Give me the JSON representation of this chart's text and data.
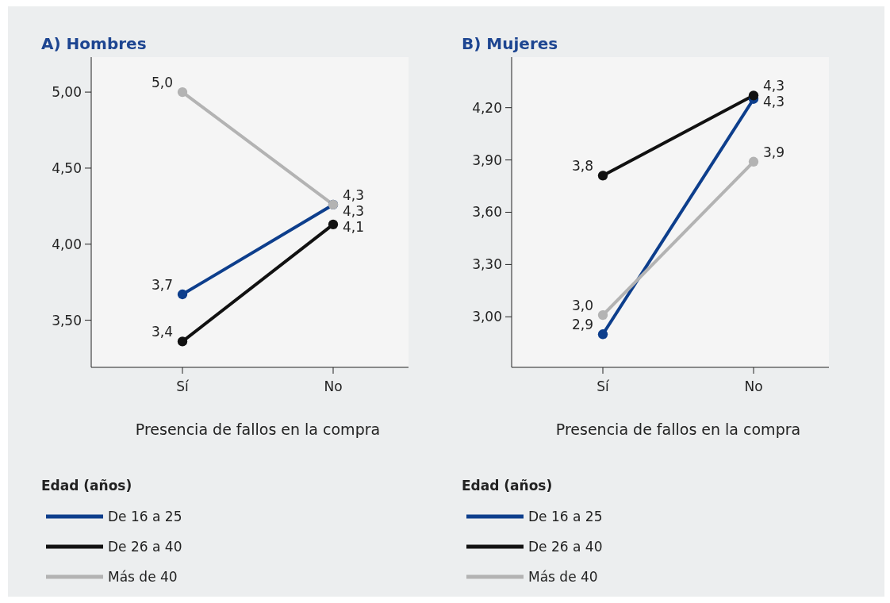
{
  "chart_data": [
    {
      "type": "line",
      "title": "A) Hombres",
      "xlabel": "Presencia de fallos en la compra",
      "legend_title": "Edad (años)",
      "legend": "bottom",
      "marker": "circle",
      "grid": false,
      "categories": [
        "Sí",
        "No"
      ],
      "ylim": [
        3.19,
        5.23
      ],
      "yticks": [
        {
          "value": 3.5,
          "label": "3,50"
        },
        {
          "value": 4.0,
          "label": "4,00"
        },
        {
          "value": 4.5,
          "label": "4,50"
        },
        {
          "value": 5.0,
          "label": "5,00"
        }
      ],
      "series": [
        {
          "name": "De 16 a 25",
          "color": "#0d3e8c",
          "values": [
            3.67,
            4.26
          ],
          "value_labels": [
            "3,7",
            "4,3"
          ]
        },
        {
          "name": "De 26 a 40",
          "color": "#111111",
          "values": [
            3.36,
            4.13
          ],
          "value_labels": [
            "3,4",
            "4,1"
          ]
        },
        {
          "name": "Más de 40",
          "color": "#b3b3b3",
          "values": [
            5.0,
            4.26
          ],
          "value_labels": [
            "5,0",
            "4,3"
          ]
        }
      ]
    },
    {
      "type": "line",
      "title": "B) Mujeres",
      "xlabel": "Presencia de fallos en la compra",
      "legend_title": "Edad (años)",
      "legend": "bottom",
      "marker": "circle",
      "grid": false,
      "categories": [
        "Sí",
        "No"
      ],
      "ylim": [
        2.71,
        4.49
      ],
      "yticks": [
        {
          "value": 3.0,
          "label": "3,00"
        },
        {
          "value": 3.3,
          "label": "3,30"
        },
        {
          "value": 3.6,
          "label": "3,60"
        },
        {
          "value": 3.9,
          "label": "3,90"
        },
        {
          "value": 4.2,
          "label": "4,20"
        }
      ],
      "series": [
        {
          "name": "De 16 a 25",
          "color": "#0d3e8c",
          "values": [
            2.9,
            4.25
          ],
          "value_labels": [
            "2,9",
            "4,3"
          ]
        },
        {
          "name": "De 26 a 40",
          "color": "#111111",
          "values": [
            3.81,
            4.27
          ],
          "value_labels": [
            "3,8",
            "4,3"
          ]
        },
        {
          "name": "Más de 40",
          "color": "#b3b3b3",
          "values": [
            3.01,
            3.89
          ],
          "value_labels": [
            "3,0",
            "3,9"
          ]
        }
      ]
    }
  ]
}
